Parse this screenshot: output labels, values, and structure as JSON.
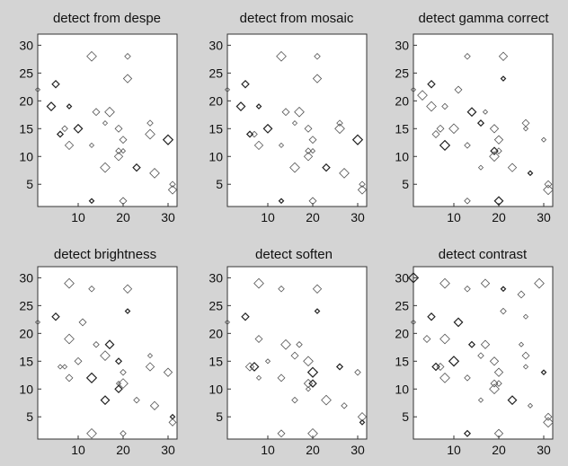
{
  "figure": {
    "background": "#d4d4d4"
  },
  "chart_data": [
    {
      "type": "scatter",
      "title": "detect from despe",
      "xlabel": "",
      "ylabel": "",
      "xlim": [
        1,
        32
      ],
      "ylim": [
        1,
        32
      ],
      "x_ticks": [
        10,
        20,
        30
      ],
      "y_ticks": [
        5,
        10,
        15,
        20,
        25,
        30
      ],
      "grid": false,
      "marker": "diamond",
      "points": [
        [
          1,
          22
        ],
        [
          5,
          23
        ],
        [
          13,
          28
        ],
        [
          21,
          28
        ],
        [
          21,
          24
        ],
        [
          8,
          19
        ],
        [
          14,
          18
        ],
        [
          17,
          18
        ],
        [
          7,
          15
        ],
        [
          10,
          15
        ],
        [
          16,
          16
        ],
        [
          19,
          15
        ],
        [
          26,
          14
        ],
        [
          6,
          14
        ],
        [
          8,
          12
        ],
        [
          13,
          12
        ],
        [
          20,
          13
        ],
        [
          30,
          13
        ],
        [
          19,
          11
        ],
        [
          19,
          10
        ],
        [
          20,
          11
        ],
        [
          23,
          8
        ],
        [
          27,
          7
        ],
        [
          31,
          5
        ],
        [
          31,
          4
        ],
        [
          13,
          2
        ],
        [
          20,
          2
        ],
        [
          16,
          8
        ],
        [
          26,
          16
        ],
        [
          4,
          19
        ]
      ]
    },
    {
      "type": "scatter",
      "title": "detect from mosaic",
      "xlabel": "",
      "ylabel": "",
      "xlim": [
        1,
        32
      ],
      "ylim": [
        1,
        32
      ],
      "x_ticks": [
        10,
        20,
        30
      ],
      "y_ticks": [
        5,
        10,
        15,
        20,
        25,
        30
      ],
      "grid": false,
      "marker": "diamond",
      "points": [
        [
          1,
          22
        ],
        [
          5,
          23
        ],
        [
          13,
          28
        ],
        [
          21,
          28
        ],
        [
          21,
          24
        ],
        [
          8,
          19
        ],
        [
          14,
          18
        ],
        [
          17,
          18
        ],
        [
          7,
          14
        ],
        [
          10,
          15
        ],
        [
          16,
          16
        ],
        [
          19,
          15
        ],
        [
          26,
          15
        ],
        [
          6,
          14
        ],
        [
          8,
          12
        ],
        [
          13,
          12
        ],
        [
          20,
          13
        ],
        [
          30,
          13
        ],
        [
          19,
          11
        ],
        [
          19,
          10
        ],
        [
          20,
          11
        ],
        [
          23,
          8
        ],
        [
          27,
          7
        ],
        [
          31,
          5
        ],
        [
          31,
          4
        ],
        [
          13,
          2
        ],
        [
          20,
          2
        ],
        [
          16,
          8
        ],
        [
          26,
          16
        ],
        [
          4,
          19
        ]
      ]
    },
    {
      "type": "scatter",
      "title": "detect gamma correct",
      "xlabel": "",
      "ylabel": "",
      "xlim": [
        1,
        32
      ],
      "ylim": [
        1,
        32
      ],
      "x_ticks": [
        10,
        20,
        30
      ],
      "y_ticks": [
        5,
        10,
        15,
        20,
        25,
        30
      ],
      "grid": false,
      "marker": "diamond",
      "points": [
        [
          1,
          22
        ],
        [
          5,
          23
        ],
        [
          3,
          21
        ],
        [
          13,
          28
        ],
        [
          21,
          28
        ],
        [
          21,
          24
        ],
        [
          11,
          22
        ],
        [
          5,
          19
        ],
        [
          8,
          19
        ],
        [
          14,
          18
        ],
        [
          17,
          18
        ],
        [
          7,
          15
        ],
        [
          10,
          15
        ],
        [
          16,
          16
        ],
        [
          19,
          15
        ],
        [
          26,
          15
        ],
        [
          6,
          14
        ],
        [
          8,
          12
        ],
        [
          13,
          12
        ],
        [
          20,
          13
        ],
        [
          30,
          13
        ],
        [
          19,
          11
        ],
        [
          19,
          10
        ],
        [
          20,
          11
        ],
        [
          23,
          8
        ],
        [
          27,
          7
        ],
        [
          31,
          5
        ],
        [
          31,
          4
        ],
        [
          13,
          2
        ],
        [
          20,
          2
        ],
        [
          16,
          8
        ],
        [
          26,
          16
        ]
      ]
    },
    {
      "type": "scatter",
      "title": "detect brightness",
      "xlabel": "",
      "ylabel": "",
      "xlim": [
        1,
        32
      ],
      "ylim": [
        1,
        32
      ],
      "x_ticks": [
        10,
        20,
        30
      ],
      "y_ticks": [
        5,
        10,
        15,
        20,
        25,
        30
      ],
      "grid": false,
      "marker": "diamond",
      "points": [
        [
          1,
          22
        ],
        [
          5,
          23
        ],
        [
          8,
          29
        ],
        [
          13,
          28
        ],
        [
          21,
          28
        ],
        [
          21,
          24
        ],
        [
          11,
          22
        ],
        [
          8,
          19
        ],
        [
          14,
          18
        ],
        [
          17,
          18
        ],
        [
          7,
          14
        ],
        [
          10,
          15
        ],
        [
          16,
          16
        ],
        [
          19,
          15
        ],
        [
          26,
          14
        ],
        [
          6,
          14
        ],
        [
          8,
          12
        ],
        [
          13,
          12
        ],
        [
          20,
          13
        ],
        [
          30,
          13
        ],
        [
          19,
          11
        ],
        [
          19,
          10
        ],
        [
          20,
          11
        ],
        [
          23,
          8
        ],
        [
          27,
          7
        ],
        [
          31,
          5
        ],
        [
          31,
          4
        ],
        [
          13,
          2
        ],
        [
          20,
          2
        ],
        [
          16,
          8
        ],
        [
          26,
          16
        ]
      ]
    },
    {
      "type": "scatter",
      "title": "detect soften",
      "xlabel": "",
      "ylabel": "",
      "xlim": [
        1,
        32
      ],
      "ylim": [
        1,
        32
      ],
      "x_ticks": [
        10,
        20,
        30
      ],
      "y_ticks": [
        5,
        10,
        15,
        20,
        25,
        30
      ],
      "grid": false,
      "marker": "diamond",
      "points": [
        [
          1,
          22
        ],
        [
          5,
          23
        ],
        [
          8,
          29
        ],
        [
          13,
          28
        ],
        [
          21,
          28
        ],
        [
          21,
          24
        ],
        [
          8,
          19
        ],
        [
          14,
          18
        ],
        [
          17,
          18
        ],
        [
          7,
          14
        ],
        [
          10,
          15
        ],
        [
          16,
          16
        ],
        [
          19,
          15
        ],
        [
          26,
          14
        ],
        [
          6,
          14
        ],
        [
          8,
          12
        ],
        [
          13,
          12
        ],
        [
          20,
          13
        ],
        [
          30,
          13
        ],
        [
          19,
          11
        ],
        [
          19,
          10
        ],
        [
          20,
          11
        ],
        [
          23,
          8
        ],
        [
          27,
          7
        ],
        [
          31,
          5
        ],
        [
          31,
          4
        ],
        [
          13,
          2
        ],
        [
          20,
          2
        ],
        [
          16,
          8
        ]
      ]
    },
    {
      "type": "scatter",
      "title": "detect contrast",
      "xlabel": "",
      "ylabel": "",
      "xlim": [
        1,
        32
      ],
      "ylim": [
        1,
        32
      ],
      "x_ticks": [
        10,
        20,
        30
      ],
      "y_ticks": [
        5,
        10,
        15,
        20,
        25,
        30
      ],
      "grid": false,
      "marker": "diamond",
      "points": [
        [
          1,
          22
        ],
        [
          5,
          23
        ],
        [
          8,
          29
        ],
        [
          13,
          28
        ],
        [
          17,
          29
        ],
        [
          21,
          28
        ],
        [
          25,
          27
        ],
        [
          29,
          29
        ],
        [
          21,
          24
        ],
        [
          11,
          22
        ],
        [
          26,
          23
        ],
        [
          4,
          19
        ],
        [
          8,
          19
        ],
        [
          14,
          18
        ],
        [
          17,
          18
        ],
        [
          25,
          18
        ],
        [
          7,
          14
        ],
        [
          10,
          15
        ],
        [
          16,
          16
        ],
        [
          19,
          15
        ],
        [
          26,
          14
        ],
        [
          6,
          14
        ],
        [
          8,
          12
        ],
        [
          13,
          12
        ],
        [
          20,
          13
        ],
        [
          30,
          13
        ],
        [
          19,
          11
        ],
        [
          19,
          10
        ],
        [
          20,
          11
        ],
        [
          23,
          8
        ],
        [
          27,
          7
        ],
        [
          31,
          5
        ],
        [
          31,
          4
        ],
        [
          13,
          2
        ],
        [
          20,
          2
        ],
        [
          16,
          8
        ],
        [
          26,
          16
        ],
        [
          1,
          30
        ]
      ]
    }
  ]
}
